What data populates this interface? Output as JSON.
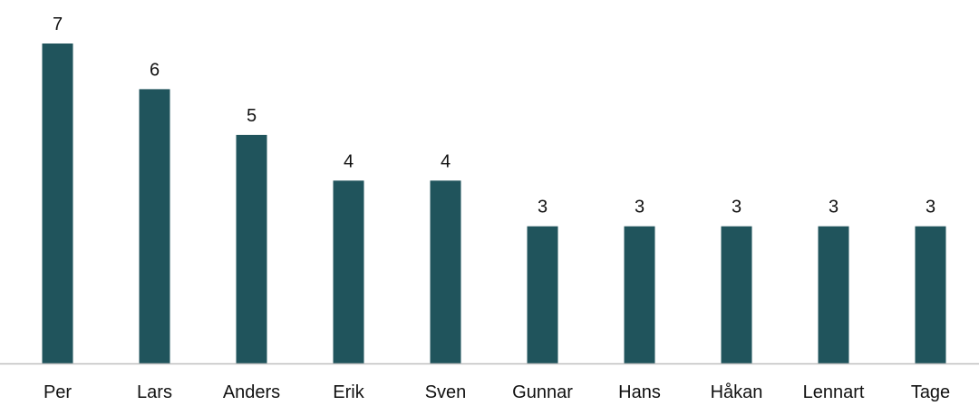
{
  "chart_data": {
    "type": "bar",
    "categories": [
      "Per",
      "Lars",
      "Anders",
      "Erik",
      "Sven",
      "Gunnar",
      "Hans",
      "Håkan",
      "Lennart",
      "Tage"
    ],
    "values": [
      7,
      6,
      5,
      4,
      4,
      3,
      3,
      3,
      3,
      3
    ],
    "title": "",
    "xlabel": "",
    "ylabel": "",
    "ylim": [
      0,
      7
    ],
    "grid": false,
    "legend": "none",
    "data_labels": true,
    "y_axis_visible": false,
    "colors": {
      "bar": "#20545C",
      "axis": "#BFBFBF",
      "text": "#111111"
    }
  }
}
